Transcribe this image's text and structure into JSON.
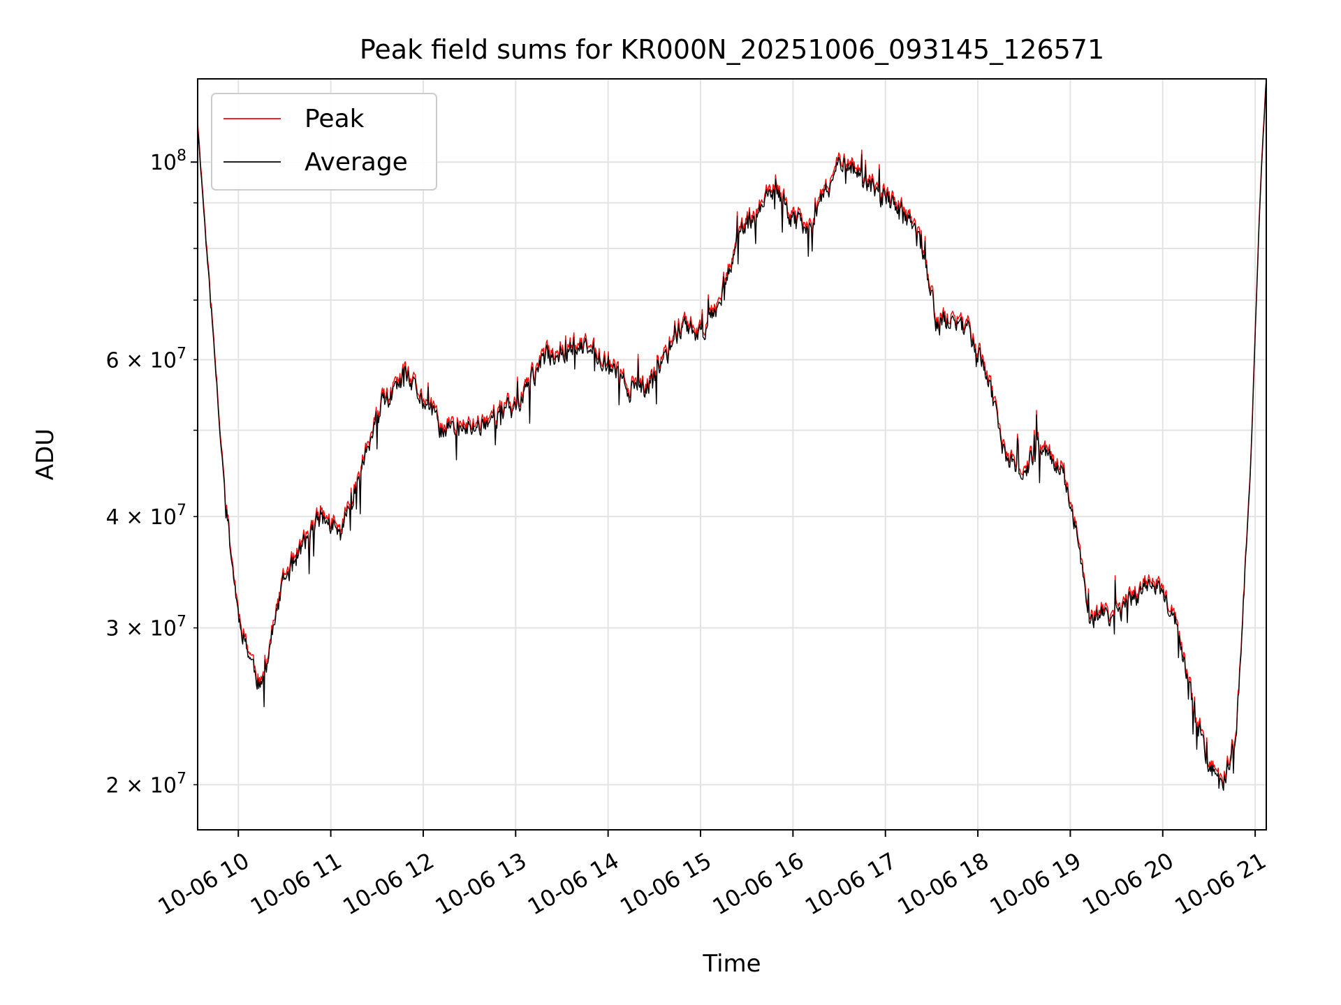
{
  "chart_data": {
    "type": "line",
    "title": "Peak field sums for KR000N_20251006_093145_126571",
    "xlabel": "Time",
    "ylabel": "ADU",
    "yscale": "log",
    "grid": true,
    "legend_position": "top-left",
    "xlim": [
      9.56,
      21.12
    ],
    "ylim": [
      17800000,
      124000000
    ],
    "x_ticks": [
      {
        "value": 10,
        "label": "10-06 10"
      },
      {
        "value": 11,
        "label": "10-06 11"
      },
      {
        "value": 12,
        "label": "10-06 12"
      },
      {
        "value": 13,
        "label": "10-06 13"
      },
      {
        "value": 14,
        "label": "10-06 14"
      },
      {
        "value": 15,
        "label": "10-06 15"
      },
      {
        "value": 16,
        "label": "10-06 16"
      },
      {
        "value": 17,
        "label": "10-06 17"
      },
      {
        "value": 18,
        "label": "10-06 18"
      },
      {
        "value": 19,
        "label": "10-06 19"
      },
      {
        "value": 20,
        "label": "10-06 20"
      },
      {
        "value": 21,
        "label": "10-06 21"
      }
    ],
    "y_major_ticks": [
      {
        "value": 100000000,
        "base": "10",
        "exp": "8"
      }
    ],
    "y_minor_ticks": [
      {
        "value": 20000000,
        "mant": "2",
        "base": "10",
        "exp": "7"
      },
      {
        "value": 30000000,
        "mant": "3",
        "base": "10",
        "exp": "7"
      },
      {
        "value": 40000000,
        "mant": "4",
        "base": "10",
        "exp": "7"
      },
      {
        "value": 50000000
      },
      {
        "value": 60000000,
        "mant": "6",
        "base": "10",
        "exp": "7"
      },
      {
        "value": 70000000
      },
      {
        "value": 80000000
      },
      {
        "value": 90000000
      }
    ],
    "series": [
      {
        "name": "Peak",
        "color": "#ff0000",
        "noise_amplitude": 0.05,
        "offset_factor": 1.012,
        "seed": 11
      },
      {
        "name": "Average",
        "color": "#000000",
        "noise_amplitude": 0.05,
        "offset_factor": 1.0,
        "seed": 11
      }
    ],
    "trend_hours": [
      9.56,
      9.62,
      9.7,
      9.8,
      9.9,
      10.0,
      10.12,
      10.25,
      10.35,
      10.5,
      10.7,
      10.9,
      11.1,
      11.35,
      11.55,
      11.8,
      12.0,
      12.2,
      12.5,
      12.8,
      13.0,
      13.3,
      13.6,
      13.9,
      14.2,
      14.4,
      14.6,
      14.8,
      15.0,
      15.2,
      15.4,
      15.6,
      15.8,
      16.0,
      16.2,
      16.4,
      16.55,
      16.8,
      17.0,
      17.2,
      17.4,
      17.55,
      17.7,
      17.9,
      18.1,
      18.3,
      18.5,
      18.7,
      18.9,
      19.05,
      19.2,
      19.5,
      19.9,
      20.0,
      20.15,
      20.3,
      20.5,
      20.65,
      20.8,
      20.95,
      21.05,
      21.12
    ],
    "trend_values": [
      110000000,
      90000000,
      70000000,
      50000000,
      38000000,
      31000000,
      28000000,
      25500000,
      29000000,
      34000000,
      37000000,
      40000000,
      38000000,
      46000000,
      53000000,
      57000000,
      54000000,
      50000000,
      50000000,
      52000000,
      53000000,
      60000000,
      62000000,
      61000000,
      56000000,
      55000000,
      60000000,
      66000000,
      64000000,
      70000000,
      82000000,
      87000000,
      93000000,
      86000000,
      85000000,
      94000000,
      102000000,
      94000000,
      91000000,
      87000000,
      80000000,
      66000000,
      66000000,
      65000000,
      58000000,
      46000000,
      45000000,
      48000000,
      45000000,
      39000000,
      31000000,
      31000000,
      34000000,
      33000000,
      30000000,
      25000000,
      21000000,
      20000000,
      23000000,
      45000000,
      90000000,
      124000000
    ]
  }
}
